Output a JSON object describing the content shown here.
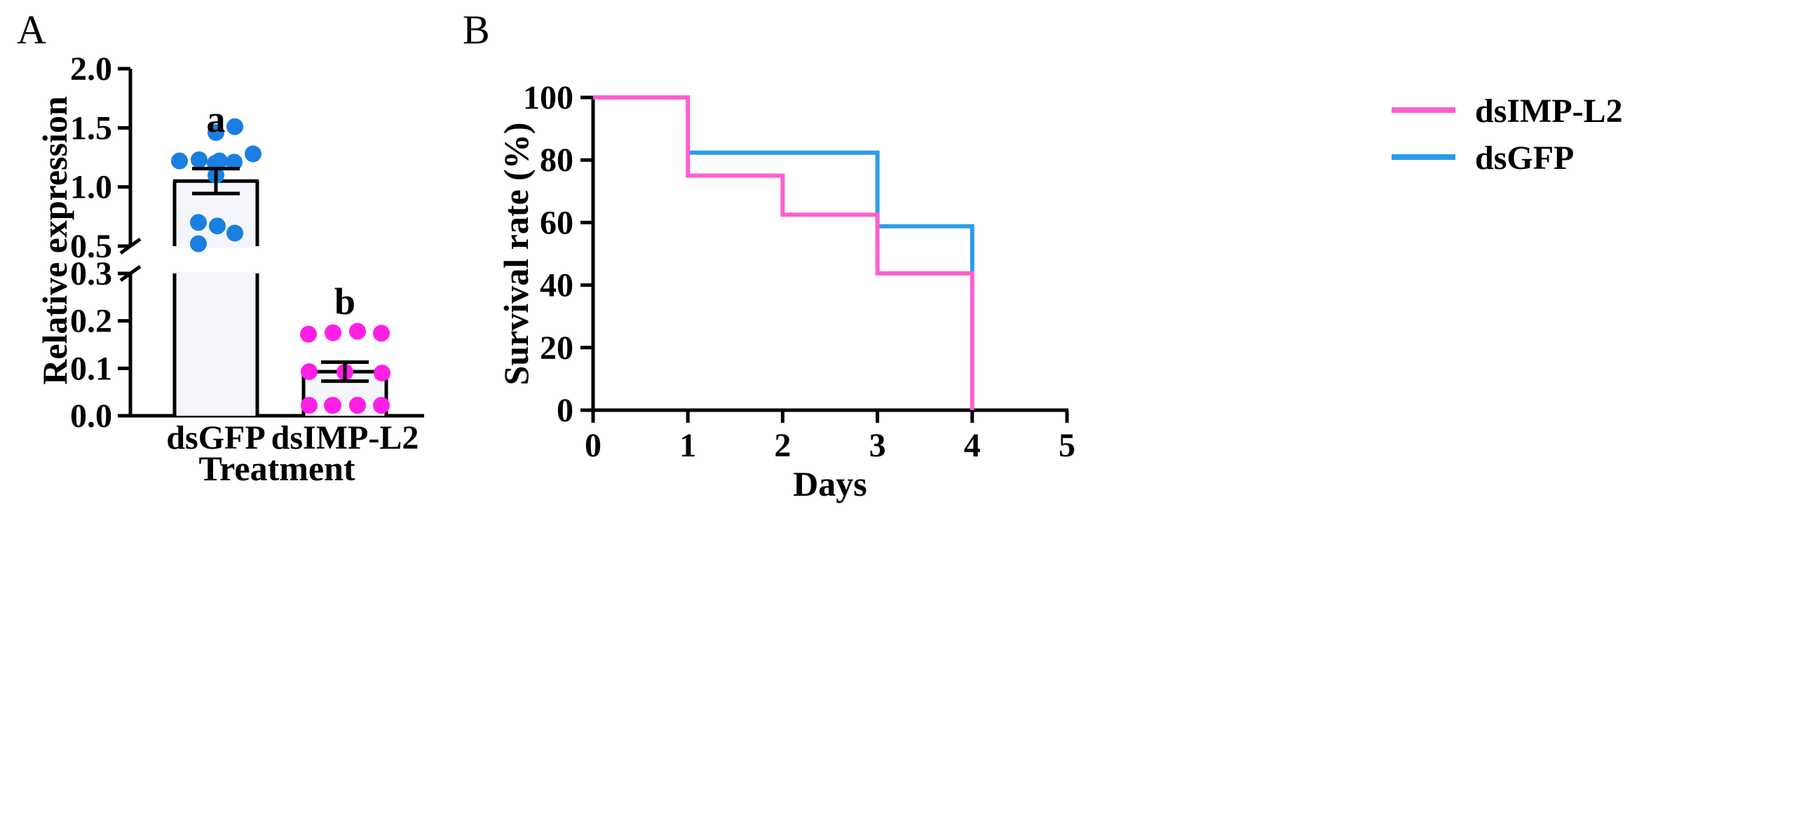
{
  "panels": {
    "a": {
      "label": "A"
    },
    "b": {
      "label": "B"
    }
  },
  "chart_data": [
    {
      "type": "bar",
      "panel": "A",
      "xlabel": "Treatment",
      "ylabel": "Relative expression",
      "categories": [
        "dsGFP",
        "dsIMP-L2"
      ],
      "means": [
        1.05,
        0.093
      ],
      "sem": [
        0.105,
        0.02
      ],
      "significance": [
        "a",
        "b"
      ],
      "y_axis_break": {
        "lower_max": 0.3,
        "upper_min": 0.5
      },
      "ylim": [
        0,
        2.0
      ],
      "yticks_lower": [
        "0.0",
        "0.1",
        "0.2",
        "0.3"
      ],
      "yticks_upper": [
        "0.5",
        "1.0",
        "1.5",
        "2.0"
      ],
      "points": [
        [
          1.22,
          1.23,
          1.2,
          1.21,
          1.28,
          1.22,
          1.46,
          1.51,
          1.1,
          0.7,
          0.67,
          0.61,
          0.52
        ],
        [
          0.172,
          0.175,
          0.178,
          0.174,
          0.093,
          0.092,
          0.09,
          0.022,
          0.022,
          0.022,
          0.022,
          0.022,
          0.022
        ]
      ],
      "colors": {
        "dsGFP": "#1a7fe0",
        "dsIMP-L2": "#ff1ee6",
        "bar_fill": "#f5f6fb"
      }
    },
    {
      "type": "line",
      "panel": "B",
      "subtype": "step",
      "xlabel": "Days",
      "ylabel": "Survival rate  (%)",
      "xlim": [
        0,
        5
      ],
      "ylim": [
        0,
        100
      ],
      "xticks": [
        "0",
        "1",
        "2",
        "3",
        "4",
        "5"
      ],
      "yticks": [
        "0",
        "20",
        "40",
        "60",
        "80",
        "100"
      ],
      "series": [
        {
          "name": "dsIMP-L2",
          "color": "#ff5ecf",
          "x": [
            0,
            1,
            1,
            2,
            2,
            3,
            3,
            4,
            4
          ],
          "y": [
            100,
            100,
            75,
            75,
            62.5,
            62.5,
            43.75,
            43.75,
            0
          ]
        },
        {
          "name": "dsGFP",
          "color": "#2a9de8",
          "x": [
            1,
            3,
            3,
            4,
            4
          ],
          "y": [
            82.35,
            82.35,
            58.8,
            58.8,
            44
          ]
        }
      ],
      "legend_position": "top-right"
    }
  ]
}
